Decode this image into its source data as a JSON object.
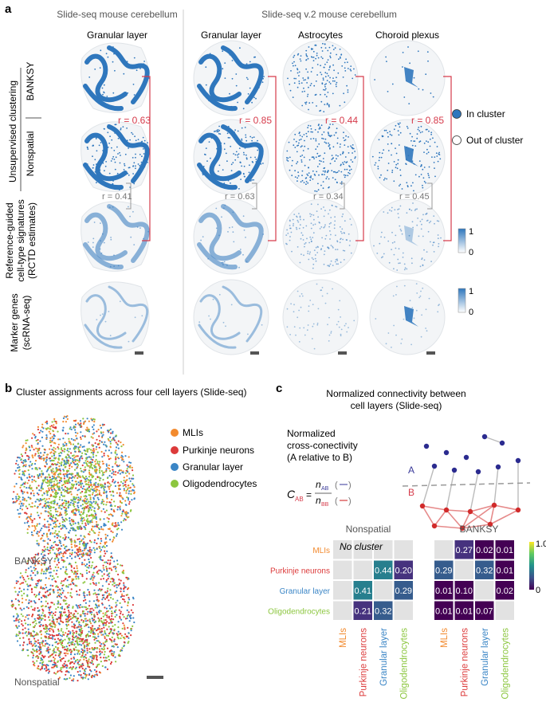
{
  "panel_a": {
    "label": "a",
    "left_header": "Slide-seq mouse cerebellum",
    "right_header": "Slide-seq v.2 mouse cerebellum",
    "columns": [
      "Granular layer",
      "Granular layer",
      "Astrocytes",
      "Choroid plexus"
    ],
    "row_group": "Unsupervised clustering",
    "rows": [
      "BANKSY",
      "Nonspatial",
      "Reference-guided",
      "cell-type signatures",
      "(RCTD estimates)",
      "Marker genes",
      "(scRNA-seq)"
    ],
    "r_unsup": [
      "r = 0.63",
      "r = 0.85",
      "r = 0.44",
      "r = 0.85"
    ],
    "r_ref": [
      "r = 0.41",
      "r = 0.63",
      "r = 0.34",
      "r = 0.45"
    ],
    "legend_in": "In cluster",
    "legend_out": "Out of cluster",
    "scale_max": "1",
    "scale_min": "0",
    "colors": {
      "cluster": "#2f77bd",
      "red": "#d63b4b",
      "gray": "#777777"
    }
  },
  "panel_b": {
    "label": "b",
    "title": "Cluster assignments across four cell layers (Slide-seq)",
    "legend": [
      {
        "name": "MLIs",
        "color": "#f28a2e"
      },
      {
        "name": "Purkinje neurons",
        "color": "#dc3a3a"
      },
      {
        "name": "Granular layer",
        "color": "#3b86c6"
      },
      {
        "name": "Oligodendrocytes",
        "color": "#8cc63f"
      }
    ],
    "label_top": "BANKSY",
    "label_bottom": "Nonspatial"
  },
  "panel_c": {
    "label": "c",
    "title_line1": "Normalized connectivity between",
    "title_line2": "cell layers (Slide-seq)",
    "def_line1": "Normalized",
    "def_line2": "cross-conectivity",
    "def_line3": "(A relative to B)",
    "node_a": "A",
    "node_b": "B",
    "formula_c": "C",
    "formula_sub": "AB",
    "formula_num": "n",
    "formula_num_sub": "AB",
    "formula_den": "n",
    "formula_den_sub": "BB",
    "heatmap_title_left": "Nonspatial",
    "heatmap_title_right": "BANKSY",
    "no_cluster": "No cluster",
    "colorbar_max": "1.0",
    "colorbar_min": "0"
  },
  "chart_data": [
    {
      "type": "heatmap",
      "title": "Nonspatial",
      "rows": [
        "MLIs",
        "Purkinje neurons",
        "Granular layer",
        "Oligodendrocytes"
      ],
      "cols": [
        "MLIs",
        "Purkinje neurons",
        "Granular layer",
        "Oligodendrocytes"
      ],
      "values": [
        [
          null,
          null,
          null,
          null
        ],
        [
          null,
          null,
          0.44,
          0.2
        ],
        [
          null,
          0.41,
          null,
          0.29
        ],
        [
          null,
          0.21,
          0.32,
          null
        ]
      ],
      "labels": [
        [
          "",
          "",
          "",
          ""
        ],
        [
          "",
          "",
          "0.44",
          "0.20"
        ],
        [
          "",
          "0.41",
          "",
          "0.29"
        ],
        [
          "",
          "0.21",
          "0.32",
          ""
        ]
      ],
      "annotation": "No cluster",
      "colorbar": [
        0,
        1.0
      ]
    },
    {
      "type": "heatmap",
      "title": "BANKSY",
      "rows": [
        "MLIs",
        "Purkinje neurons",
        "Granular layer",
        "Oligodendrocytes"
      ],
      "cols": [
        "MLIs",
        "Purkinje neurons",
        "Granular layer",
        "Oligodendrocytes"
      ],
      "values": [
        [
          null,
          0.27,
          0.02,
          0.01
        ],
        [
          0.29,
          null,
          0.32,
          0.01
        ],
        [
          0.01,
          0.1,
          null,
          0.02
        ],
        [
          0.01,
          0.01,
          0.07,
          null
        ]
      ],
      "labels": [
        [
          "",
          "0.27",
          "0.02",
          "0.01"
        ],
        [
          "0.29",
          "",
          "0.32",
          "0.01"
        ],
        [
          "0.01",
          "0.10",
          "",
          "0.02"
        ],
        [
          "0.01",
          "0.01",
          "0.07",
          ""
        ]
      ],
      "colorbar": [
        0,
        1.0
      ]
    }
  ]
}
